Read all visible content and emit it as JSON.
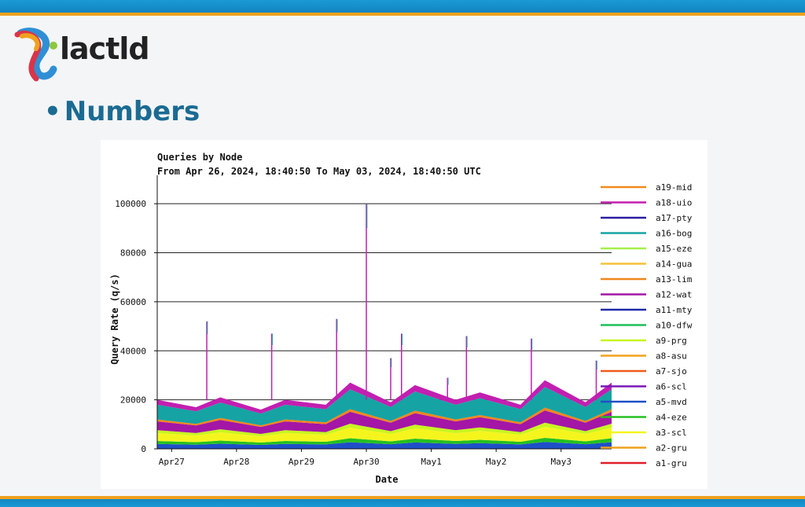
{
  "logo": {
    "text": "lactld",
    "colors": [
      "#f0a11e",
      "#d9344a",
      "#2f8fd6",
      "#8dc63f"
    ]
  },
  "bullet": {
    "dot": "•",
    "text": "Numbers"
  },
  "chart_data": {
    "type": "area",
    "title": "Queries by Node",
    "subtitle": "From Apr 26, 2024, 18:40:50 To May 03, 2024, 18:40:50 UTC",
    "xlabel": "Date",
    "ylabel": "Query Rate (q/s)",
    "ylim": [
      0,
      110000
    ],
    "yticks": [
      0,
      20000,
      40000,
      60000,
      80000,
      100000
    ],
    "x_start": "2024-04-26 18:40:50",
    "x_end": "2024-05-03 18:40:50",
    "xticks": [
      {
        "label": "Apr27",
        "date": "2024-04-27"
      },
      {
        "label": "Apr28",
        "date": "2024-04-28"
      },
      {
        "label": "Apr29",
        "date": "2024-04-29"
      },
      {
        "label": "Apr30",
        "date": "2024-04-30"
      },
      {
        "label": "May1",
        "date": "2024-05-01"
      },
      {
        "label": "May2",
        "date": "2024-05-02"
      },
      {
        "label": "May3",
        "date": "2024-05-03"
      }
    ],
    "grid": "horizontal",
    "legend_position": "right",
    "series": [
      {
        "name": "a19-mid",
        "color": "#f08a1c"
      },
      {
        "name": "a18-uio",
        "color": "#c21fb0"
      },
      {
        "name": "a17-pty",
        "color": "#2a1fa0"
      },
      {
        "name": "a16-bog",
        "color": "#16a3a3"
      },
      {
        "name": "a15-eze",
        "color": "#a6f04a"
      },
      {
        "name": "a14-gua",
        "color": "#f6c23a"
      },
      {
        "name": "a13-lim",
        "color": "#f0861c"
      },
      {
        "name": "a12-wat",
        "color": "#a316a6"
      },
      {
        "name": "a11-mty",
        "color": "#1f2aa8"
      },
      {
        "name": "a10-dfw",
        "color": "#1fbf5a"
      },
      {
        "name": "a9-prg",
        "color": "#c8f520"
      },
      {
        "name": "a8-asu",
        "color": "#f2a21e"
      },
      {
        "name": "a7-sjo",
        "color": "#f05a1e"
      },
      {
        "name": "a6-scl",
        "color": "#7a18b8"
      },
      {
        "name": "a5-mvd",
        "color": "#1f4fc8"
      },
      {
        "name": "a4-eze",
        "color": "#26c020"
      },
      {
        "name": "a3-scl",
        "color": "#f5f51e"
      },
      {
        "name": "a2-gru",
        "color": "#f0a01e"
      },
      {
        "name": "a1-gru",
        "color": "#e01e2a"
      }
    ],
    "approx_stacked_totals": [
      {
        "date": "2024-04-26 18:40",
        "value": 20000
      },
      {
        "date": "2024-04-27 09:00",
        "value": 17000
      },
      {
        "date": "2024-04-27 18:00",
        "value": 21000
      },
      {
        "date": "2024-04-28 09:00",
        "value": 16000
      },
      {
        "date": "2024-04-28 18:00",
        "value": 20000
      },
      {
        "date": "2024-04-29 09:00",
        "value": 18000
      },
      {
        "date": "2024-04-29 18:00",
        "value": 27000
      },
      {
        "date": "2024-04-30 09:00",
        "value": 19000
      },
      {
        "date": "2024-04-30 18:00",
        "value": 26000
      },
      {
        "date": "2024-05-01 09:00",
        "value": 20000
      },
      {
        "date": "2024-05-01 18:00",
        "value": 23000
      },
      {
        "date": "2024-05-02 09:00",
        "value": 18000
      },
      {
        "date": "2024-05-02 18:00",
        "value": 28000
      },
      {
        "date": "2024-05-03 09:00",
        "value": 19000
      },
      {
        "date": "2024-05-03 18:40",
        "value": 27000
      }
    ],
    "spikes": [
      {
        "date": "2024-04-27 13:00",
        "value": 52000
      },
      {
        "date": "2024-04-28 13:00",
        "value": 47000
      },
      {
        "date": "2024-04-29 13:00",
        "value": 53000
      },
      {
        "date": "2024-04-30 00:00",
        "value": 100000
      },
      {
        "date": "2024-04-30 09:00",
        "value": 37000
      },
      {
        "date": "2024-04-30 13:00",
        "value": 47000
      },
      {
        "date": "2024-05-01 06:00",
        "value": 29000
      },
      {
        "date": "2024-05-01 13:00",
        "value": 46000
      },
      {
        "date": "2024-05-02 13:00",
        "value": 45000
      },
      {
        "date": "2024-05-03 13:00",
        "value": 36000
      }
    ]
  }
}
